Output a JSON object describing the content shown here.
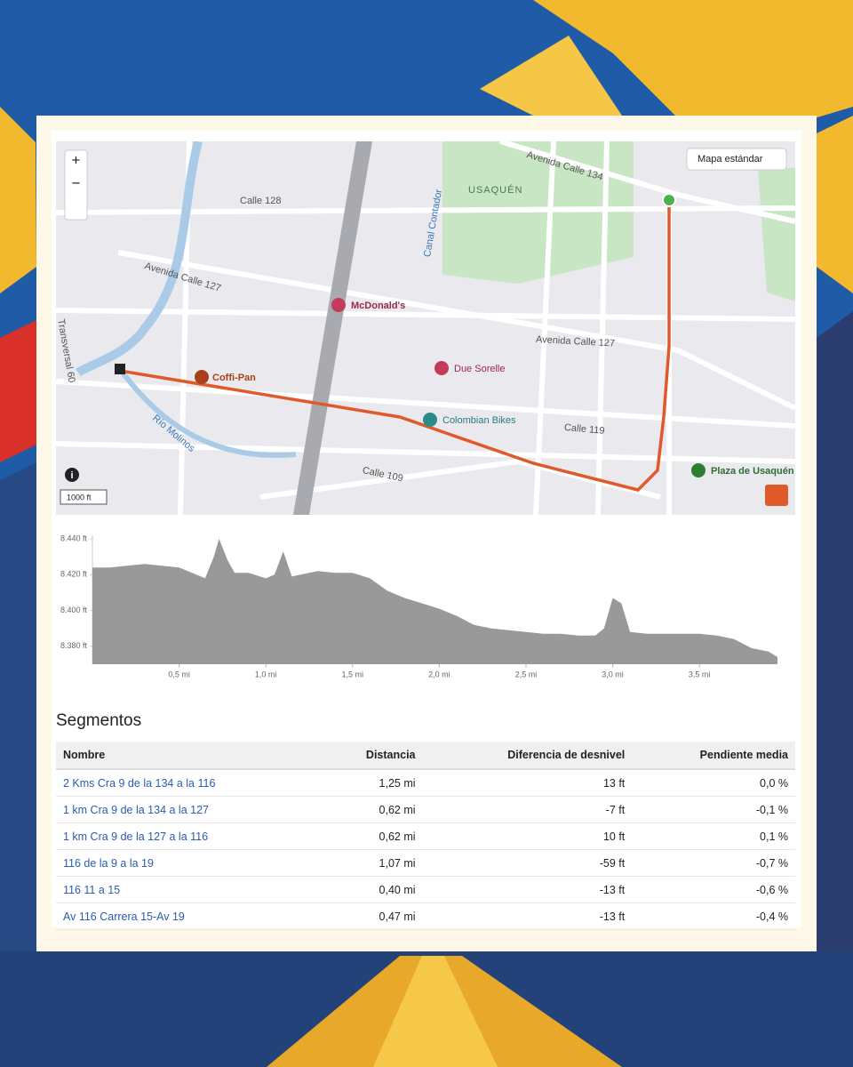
{
  "map": {
    "style_button": "Mapa estándar",
    "zoom_in": "+",
    "zoom_out": "−",
    "info": "i",
    "scale": "1000 ft",
    "streets": [
      "Calle 128",
      "Avenida Calle 127",
      "Avenida Calle 134",
      "Canal Contador",
      "Avenida Calle 127",
      "Calle 119",
      "Calle 109",
      "Río Molinos",
      "Transversal 60"
    ],
    "area": "USAQUÉN",
    "places": [
      "McDonald's",
      "Due Sorelle",
      "Coffi-Pan",
      "Colombian Bikes",
      "Plaza de Usaquén"
    ]
  },
  "elevation": {
    "type": "area",
    "color": "#999999",
    "x": [
      0,
      0.1,
      0.2,
      0.3,
      0.4,
      0.5,
      0.6,
      0.65,
      0.7,
      0.73,
      0.78,
      0.82,
      0.9,
      1.0,
      1.05,
      1.1,
      1.15,
      1.2,
      1.3,
      1.4,
      1.5,
      1.6,
      1.7,
      1.8,
      1.9,
      2.0,
      2.1,
      2.2,
      2.3,
      2.4,
      2.5,
      2.6,
      2.7,
      2.8,
      2.9,
      2.95,
      3.0,
      3.05,
      3.1,
      3.2,
      3.3,
      3.4,
      3.5,
      3.6,
      3.7,
      3.8,
      3.9,
      3.95
    ],
    "values": [
      8424,
      8424,
      8425,
      8426,
      8425,
      8424,
      8420,
      8418,
      8430,
      8440,
      8428,
      8421,
      8421,
      8418,
      8420,
      8433,
      8419,
      8420,
      8422,
      8421,
      8421,
      8418,
      8411,
      8407,
      8404,
      8401,
      8397,
      8392,
      8390,
      8389,
      8388,
      8387,
      8387,
      8386,
      8386,
      8390,
      8407,
      8404,
      8388,
      8387,
      8387,
      8387,
      8387,
      8386,
      8384,
      8379,
      8377,
      8374
    ],
    "xlim": [
      0,
      3.95
    ],
    "ylim": [
      8370,
      8442
    ],
    "yticks": [
      {
        "value": 8440,
        "label": "8.440 ft"
      },
      {
        "value": 8420,
        "label": "8.420 ft"
      },
      {
        "value": 8400,
        "label": "8.400 ft"
      },
      {
        "value": 8380,
        "label": "8.380 ft"
      }
    ],
    "xticks": [
      {
        "value": 0.5,
        "label": "0,5 mi"
      },
      {
        "value": 1.0,
        "label": "1,0 mi"
      },
      {
        "value": 1.5,
        "label": "1,5 mi"
      },
      {
        "value": 2.0,
        "label": "2,0 mi"
      },
      {
        "value": 2.5,
        "label": "2,5 mi"
      },
      {
        "value": 3.0,
        "label": "3,0 mi"
      },
      {
        "value": 3.5,
        "label": "3,5 mi"
      }
    ]
  },
  "segments": {
    "title": "Segmentos",
    "columns": [
      "Nombre",
      "Distancia",
      "Diferencia de desnivel",
      "Pendiente media"
    ],
    "rows": [
      [
        "2 Kms Cra 9 de la 134 a la 116",
        "1,25 mi",
        "13 ft",
        "0,0 %"
      ],
      [
        "1 km Cra 9 de la 134 a la 127",
        "0,62 mi",
        "-7 ft",
        "-0,1 %"
      ],
      [
        "1 km Cra 9 de la 127 a la 116",
        "0,62 mi",
        "10 ft",
        "0,1 %"
      ],
      [
        "116 de la 9 a la 19",
        "1,07 mi",
        "-59 ft",
        "-0,7 %"
      ],
      [
        "116 11 a 15",
        "0,40 mi",
        "-13 ft",
        "-0,6 %"
      ],
      [
        "Av 116 Carrera 15-Av 19",
        "0,47 mi",
        "-13 ft",
        "-0,4 %"
      ]
    ]
  }
}
